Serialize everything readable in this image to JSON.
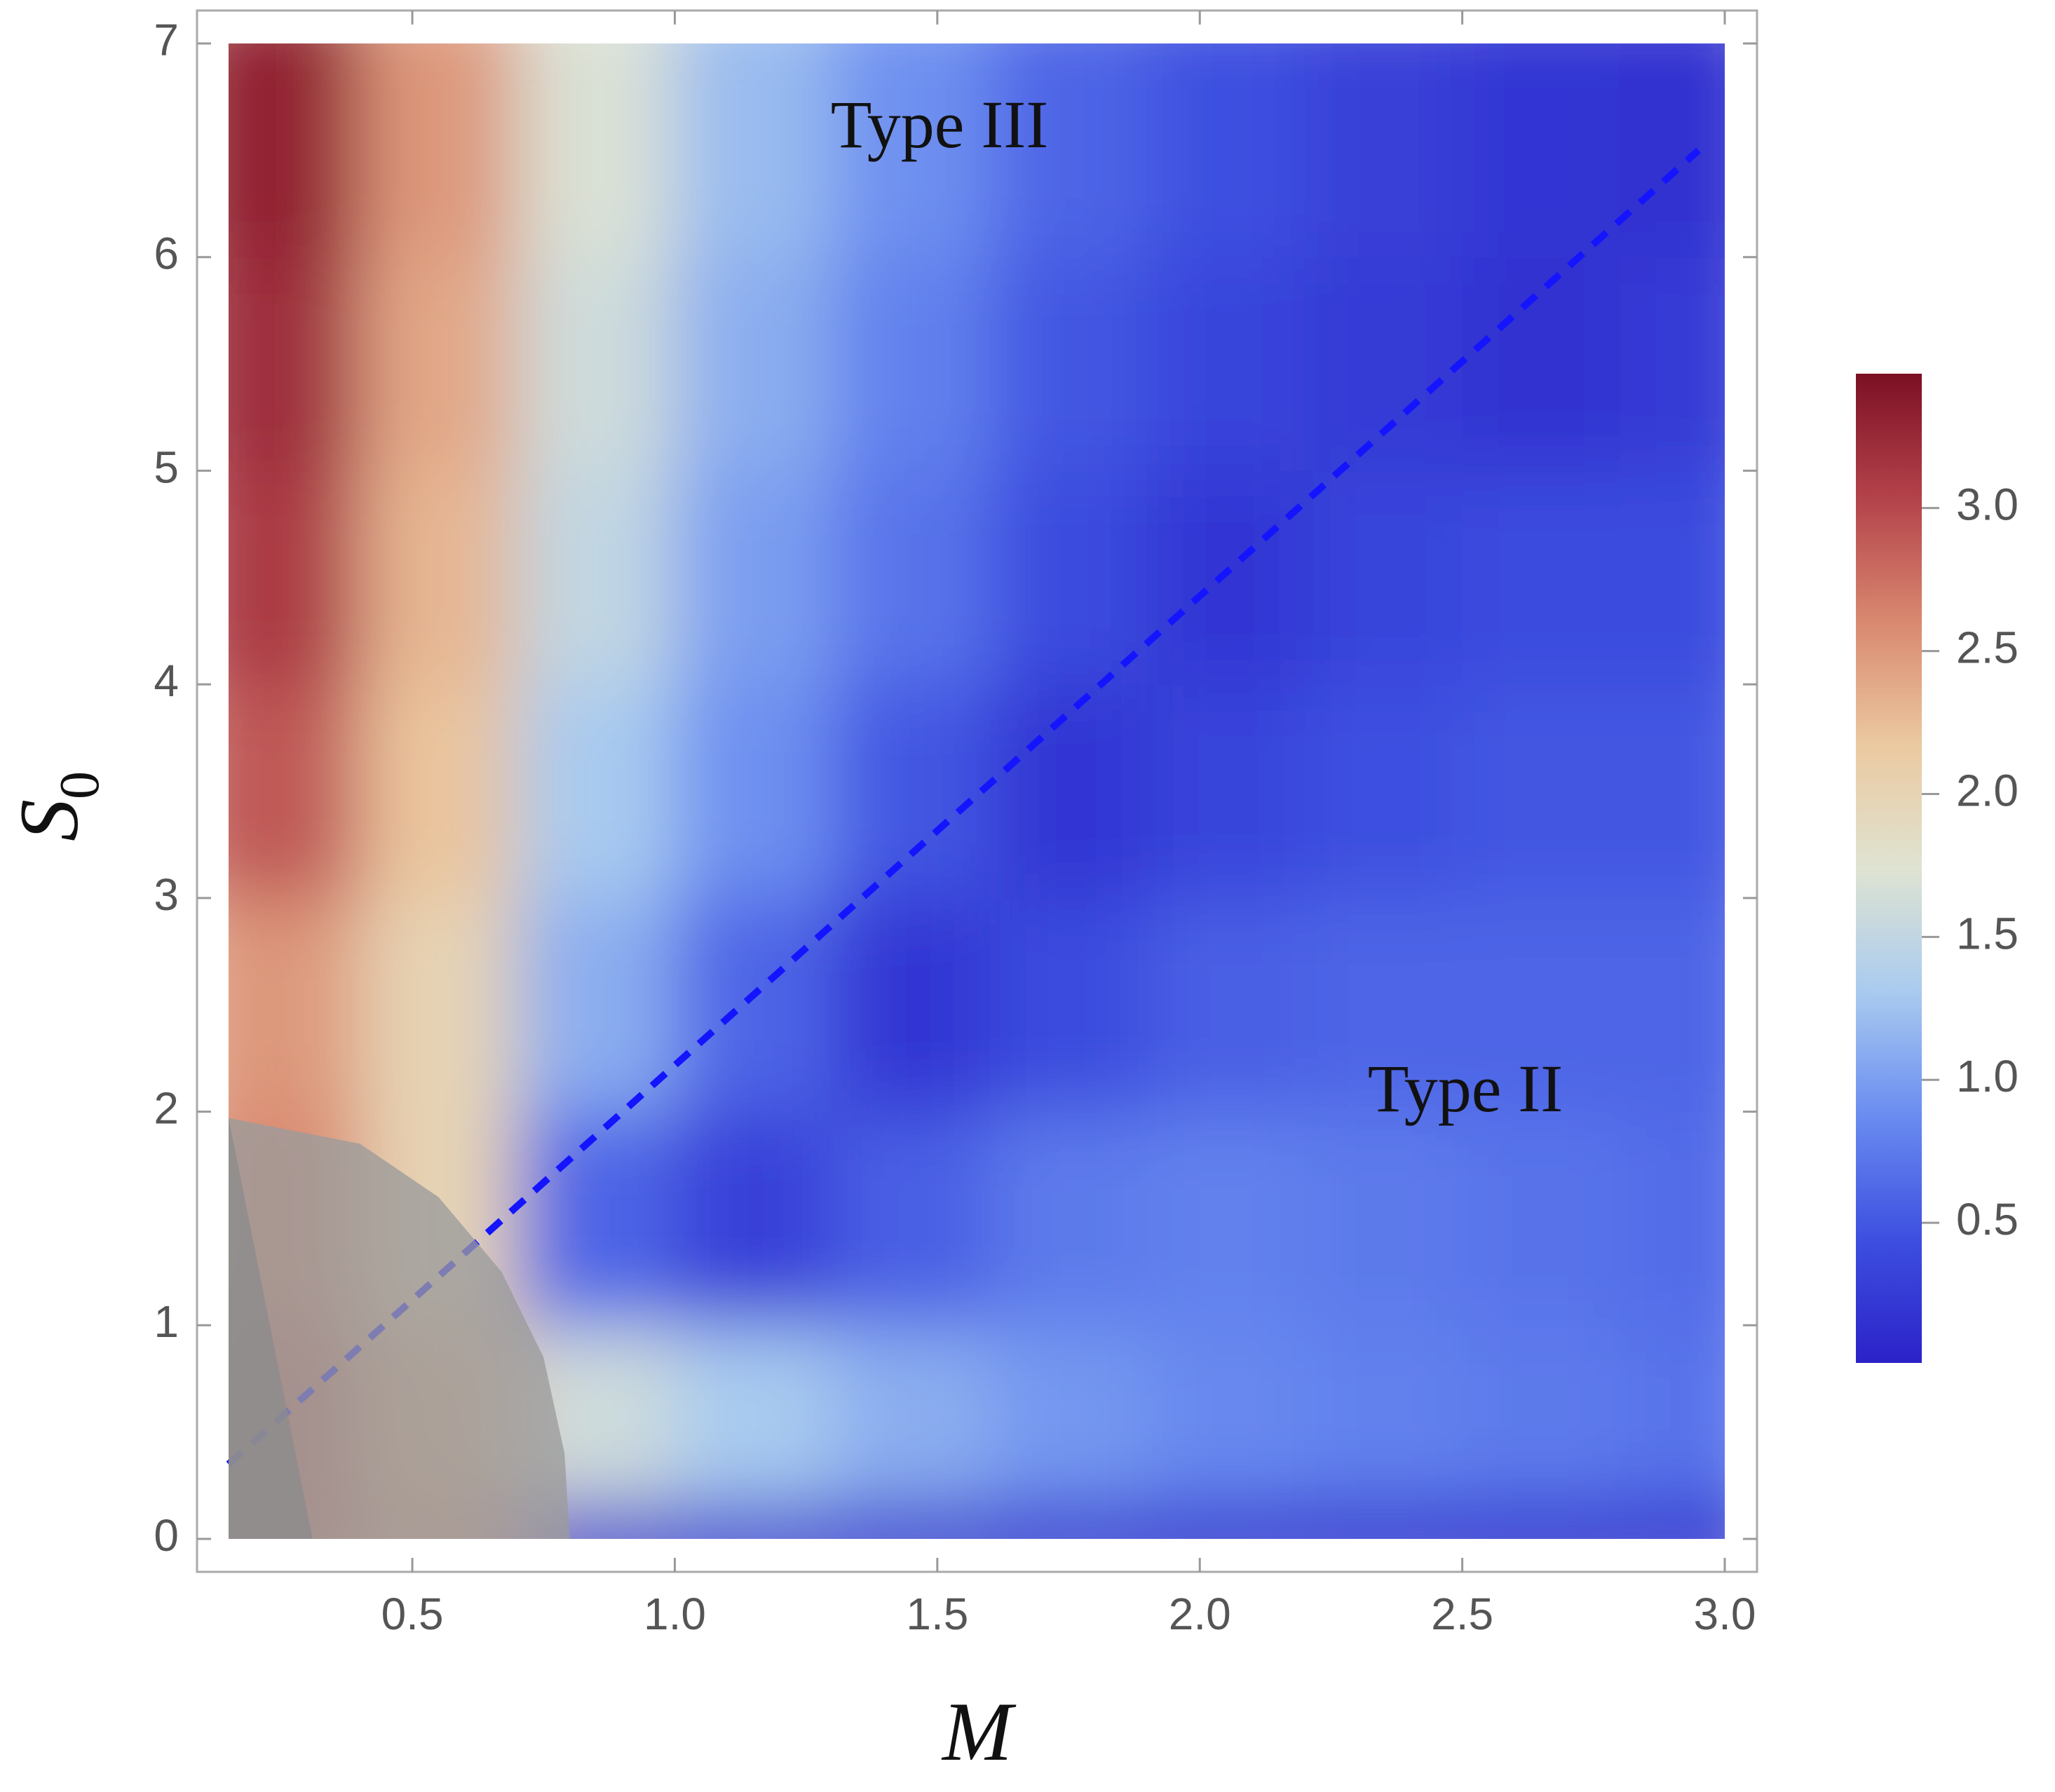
{
  "chart_data": {
    "type": "heatmap",
    "x_label": "M",
    "y_label": "S",
    "y_label_sub": "0",
    "xbins": [
      0.15,
      0.4,
      0.7,
      1.0,
      1.3,
      1.6,
      1.9,
      2.2,
      2.5,
      2.8,
      3.0
    ],
    "ybins": [
      0,
      0.15,
      1,
      2,
      3,
      4,
      5,
      6,
      7
    ],
    "z": [
      [
        2.8,
        2.5,
        0.1,
        0.1,
        0.1,
        0.1,
        0.1,
        0.1,
        0.1,
        0.1
      ],
      [
        2.8,
        2.3,
        1.6,
        1.3,
        1.1,
        0.95,
        0.85,
        0.8,
        0.75,
        0.7
      ],
      [
        2.6,
        2.0,
        0.6,
        0.3,
        0.55,
        0.75,
        0.8,
        0.75,
        0.7,
        0.65
      ],
      [
        2.5,
        2.0,
        1.1,
        0.6,
        0.2,
        0.4,
        0.55,
        0.6,
        0.6,
        0.6
      ],
      [
        2.9,
        2.2,
        1.3,
        0.9,
        0.5,
        0.2,
        0.35,
        0.45,
        0.5,
        0.5
      ],
      [
        3.1,
        2.3,
        1.5,
        1.0,
        0.7,
        0.4,
        0.2,
        0.35,
        0.4,
        0.4
      ],
      [
        3.2,
        2.4,
        1.6,
        1.1,
        0.8,
        0.5,
        0.35,
        0.25,
        0.15,
        0.25
      ],
      [
        3.3,
        2.5,
        1.7,
        1.2,
        0.9,
        0.6,
        0.45,
        0.3,
        0.2,
        0.15
      ]
    ],
    "colorscale": [
      "#2b22c8",
      "#3d4fe0",
      "#6a8cf0",
      "#a9cbef",
      "#dfe3d2",
      "#ebc9a0",
      "#d98870",
      "#b3424a",
      "#7c1024"
    ],
    "zlim": [
      0.01,
      3.47
    ],
    "zticks": [
      0.5,
      {
        "value": 1.0,
        "label": "1.0"
      },
      1.5,
      {
        "value": 2.0,
        "label": "2.0"
      },
      2.5,
      {
        "value": 3.0,
        "label": "3.0"
      }
    ],
    "xlim": [
      0.15,
      3.0
    ],
    "xticks": [
      0.5,
      {
        "value": 1.0,
        "label": "1.0"
      },
      1.5,
      {
        "value": 2.0,
        "label": "2.0"
      },
      2.5,
      {
        "value": 3.0,
        "label": "3.0"
      }
    ],
    "ylim": [
      0,
      7
    ],
    "yticks": [
      0,
      1,
      2,
      3,
      4,
      5,
      6,
      7
    ],
    "line": {
      "x": [
        0.15,
        2.95
      ],
      "y": [
        0.35,
        6.5
      ],
      "color": "#1414ff"
    },
    "regions": [
      {
        "x": [
          0.15,
          0.4,
          0.55,
          0.67,
          0.75,
          0.79,
          0.8,
          0.15
        ],
        "y": [
          1.97,
          1.85,
          1.6,
          1.25,
          0.85,
          0.4,
          0,
          0
        ],
        "color": "#9b9b9b"
      },
      {
        "x": [
          0.15,
          0.31,
          0.15
        ],
        "y": [
          1.97,
          0,
          0
        ],
        "color": "#8c8c8c"
      }
    ],
    "annotations": [
      "Type III",
      "Type II"
    ]
  }
}
